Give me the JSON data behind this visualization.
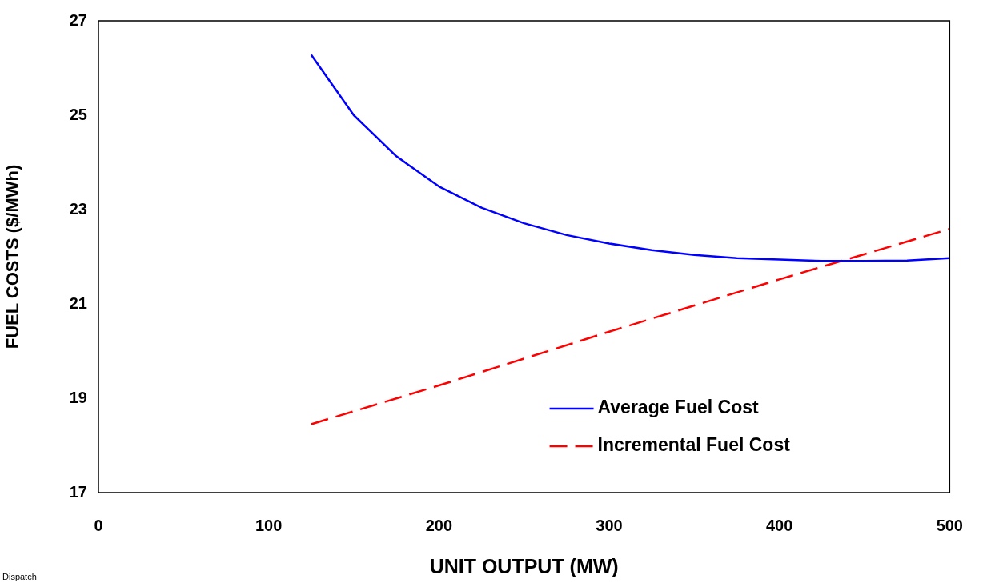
{
  "chart_data": {
    "type": "line",
    "xlabel": "UNIT OUTPUT (MW)",
    "ylabel": "FUEL COSTS ($/MWh)",
    "series": [
      {
        "name": "Average Fuel Cost",
        "color": "#0000ff",
        "line_style": "solid",
        "x": [
          125,
          150,
          175,
          200,
          225,
          250,
          275,
          300,
          325,
          350,
          375,
          400,
          425,
          450,
          475,
          500
        ],
        "values": [
          26.28,
          25.0,
          24.13,
          23.49,
          23.04,
          22.71,
          22.46,
          22.28,
          22.14,
          22.04,
          21.97,
          21.94,
          21.91,
          21.91,
          21.92,
          21.97
        ]
      },
      {
        "name": "Incremental Fuel Cost",
        "color": "#ff0000",
        "line_style": "dashed",
        "x": [
          125,
          200,
          300,
          400,
          500
        ],
        "values": [
          18.45,
          19.27,
          20.41,
          21.52,
          22.59
        ]
      }
    ],
    "xlim": [
      0,
      500
    ],
    "xticks": [
      0,
      100,
      200,
      300,
      400,
      500
    ],
    "ylim": [
      17,
      27
    ],
    "yticks": [
      17,
      19,
      21,
      23,
      25,
      27
    ],
    "grid": false,
    "legend": "bottom right",
    "marker": "none",
    "annotations": [
      "Dispatch"
    ]
  }
}
